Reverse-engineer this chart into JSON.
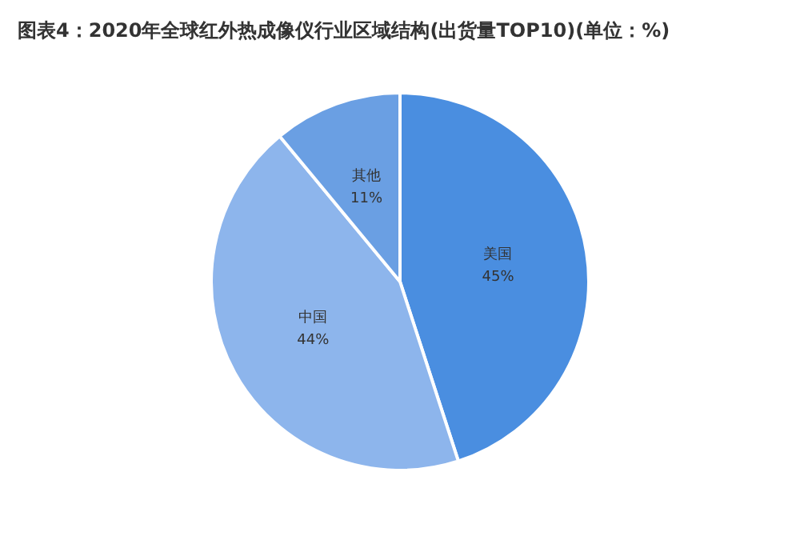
{
  "chart_data": {
    "type": "pie",
    "title": "图表4：2020年全球红外热成像仪行业区域结构(出货量TOP10)(单位：%)",
    "categories": [
      "美国",
      "中国",
      "其他"
    ],
    "values": [
      45,
      44,
      11
    ],
    "colors": [
      "#4a8ee0",
      "#8db5ec",
      "#6a9fe3"
    ],
    "value_labels": [
      "45%",
      "44%",
      "11%"
    ]
  }
}
